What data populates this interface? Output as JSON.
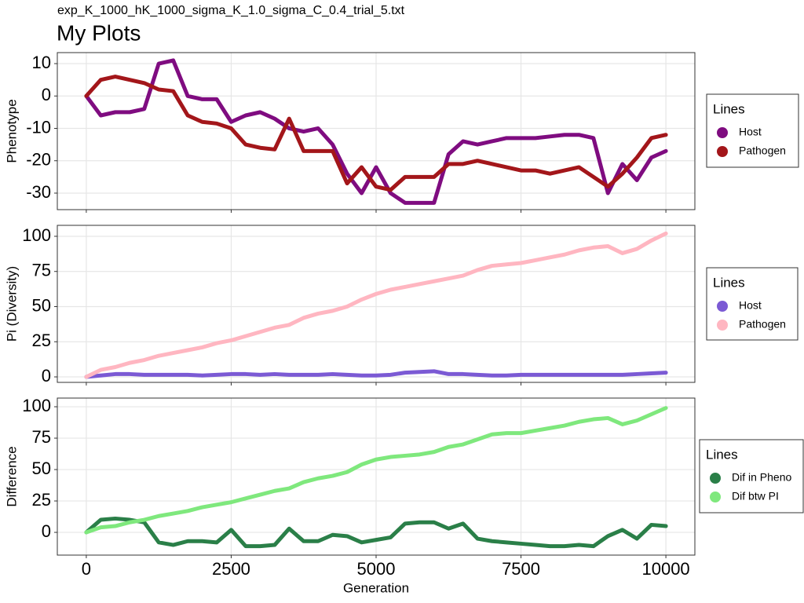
{
  "chart_data": [
    {
      "type": "line",
      "subtitle": "exp_K_1000_hK_1000_sigma_K_1.0_sigma_C_0.4_trial_5.txt",
      "title": "My Plots",
      "y_label": "Phenotype",
      "legend_title": "Lines",
      "grid": true,
      "xlim": [
        -500,
        10500
      ],
      "xticks": [
        0,
        2500,
        5000,
        7500,
        10000
      ],
      "ylim": [
        -35.1,
        13.4
      ],
      "yticks": [
        -30,
        -20,
        -10,
        0,
        10
      ],
      "x": [
        0,
        250,
        500,
        750,
        1000,
        1250,
        1500,
        1750,
        2000,
        2250,
        2500,
        2750,
        3000,
        3250,
        3500,
        3750,
        4000,
        4250,
        4500,
        4750,
        5000,
        5250,
        5500,
        5750,
        6000,
        6250,
        6500,
        6750,
        7000,
        7250,
        7500,
        7750,
        8000,
        8250,
        8500,
        8750,
        9000,
        9250,
        9500,
        9750,
        10000
      ],
      "series": [
        {
          "name": "Host",
          "color": "#7f0c80",
          "values": [
            0,
            -6,
            -5,
            -5,
            -4,
            10,
            11,
            0,
            -1,
            -1,
            -8,
            -6,
            -5,
            -7,
            -10,
            -11,
            -10,
            -15,
            -24,
            -30,
            -22,
            -30,
            -33,
            -33,
            -33,
            -18,
            -14,
            -15,
            -14,
            -13,
            -13,
            -13,
            -12.5,
            -12,
            -12,
            -13,
            -30,
            -21,
            -26,
            -19,
            -17
          ]
        },
        {
          "name": "Pathogen",
          "color": "#a3161a",
          "values": [
            0,
            5,
            6,
            5,
            4,
            2,
            1.5,
            -6,
            -8,
            -8.5,
            -10,
            -15,
            -16,
            -16.5,
            -7,
            -17,
            -17,
            -17,
            -27,
            -22,
            -28,
            -29,
            -25,
            -25,
            -25,
            -21,
            -21,
            -20,
            -21,
            -22,
            -23,
            -23,
            -24,
            -23,
            -22,
            -25,
            -28,
            -24,
            -19,
            -13,
            -12
          ]
        }
      ]
    },
    {
      "type": "line",
      "y_label": "Pi (Diversity)",
      "legend_title": "Lines",
      "grid": true,
      "xlim": [
        -500,
        10500
      ],
      "xticks": [
        0,
        2500,
        5000,
        7500,
        10000
      ],
      "ylim": [
        -3.9,
        107.8
      ],
      "yticks": [
        0,
        25,
        50,
        75,
        100
      ],
      "x": [
        0,
        250,
        500,
        750,
        1000,
        1250,
        1500,
        1750,
        2000,
        2250,
        2500,
        2750,
        3000,
        3250,
        3500,
        3750,
        4000,
        4250,
        4500,
        4750,
        5000,
        5250,
        5500,
        5750,
        6000,
        6250,
        6500,
        6750,
        7000,
        7250,
        7500,
        7750,
        8000,
        8250,
        8500,
        8750,
        9000,
        9250,
        9500,
        9750,
        10000
      ],
      "series": [
        {
          "name": "Host",
          "color": "#7b5ad4",
          "values": [
            0,
            1,
            2,
            2,
            1.5,
            1.5,
            1.5,
            1.5,
            1,
            1.5,
            2,
            2,
            1.5,
            2,
            1.5,
            1.5,
            1.5,
            2,
            1.5,
            1,
            1,
            1.5,
            3,
            3.5,
            4,
            2,
            2,
            1.5,
            1,
            1,
            1.5,
            1.5,
            1.5,
            1.5,
            1.5,
            1.5,
            1.5,
            1.5,
            2,
            2.5,
            3
          ]
        },
        {
          "name": "Pathogen",
          "color": "#ffb6c1",
          "values": [
            0,
            5,
            7,
            10,
            12,
            15,
            17,
            19,
            21,
            24,
            26,
            29,
            32,
            35,
            37,
            42,
            45,
            47,
            50,
            55,
            59,
            62,
            64,
            66,
            68,
            70,
            72,
            76,
            79,
            80,
            81,
            83,
            85,
            87,
            90,
            92,
            93,
            88,
            91,
            97,
            102
          ]
        }
      ]
    },
    {
      "type": "line",
      "y_label": "Difference",
      "x_label": "Generation",
      "legend_title": "Lines",
      "grid": true,
      "xlim": [
        -500,
        10500
      ],
      "xticks": [
        0,
        2500,
        5000,
        7500,
        10000
      ],
      "ylim": [
        -18.1,
        106.9
      ],
      "yticks": [
        0,
        25,
        50,
        75,
        100
      ],
      "x": [
        0,
        250,
        500,
        750,
        1000,
        1250,
        1500,
        1750,
        2000,
        2250,
        2500,
        2750,
        3000,
        3250,
        3500,
        3750,
        4000,
        4250,
        4500,
        4750,
        5000,
        5250,
        5500,
        5750,
        6000,
        6250,
        6500,
        6750,
        7000,
        7250,
        7500,
        7750,
        8000,
        8250,
        8500,
        8750,
        9000,
        9250,
        9500,
        9750,
        10000
      ],
      "series": [
        {
          "name": "Dif in Pheno",
          "color": "#2a7f48",
          "values": [
            0,
            10,
            11,
            10,
            8,
            -8,
            -10,
            -7,
            -7,
            -8,
            2,
            -11,
            -11,
            -10,
            3,
            -7,
            -7,
            -2,
            -3,
            -8,
            -6,
            -4,
            7,
            8,
            8,
            3,
            7,
            -5,
            -7,
            -8,
            -9,
            -10,
            -11,
            -11,
            -10,
            -11,
            -3,
            2,
            -5,
            6,
            5
          ]
        },
        {
          "name": "Dif btw PI",
          "color": "#7fe87d",
          "values": [
            0,
            4,
            5,
            8,
            10,
            13,
            15,
            17,
            20,
            22,
            24,
            27,
            30,
            33,
            35,
            40,
            43,
            45,
            48,
            54,
            58,
            60,
            61,
            62,
            64,
            68,
            70,
            74,
            78,
            79,
            79,
            81,
            83,
            85,
            88,
            90,
            91,
            86,
            89,
            94,
            99
          ]
        }
      ]
    }
  ]
}
